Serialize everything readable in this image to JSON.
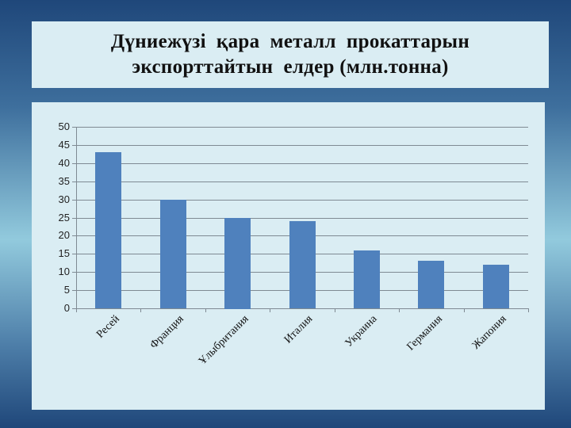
{
  "title": {
    "line1": "Дүниежүзі  қара  металл  прокаттарын",
    "line2": "экспорттайтын  елдер (млн.тонна)"
  },
  "colors": {
    "bar": "#4f81bd",
    "panel": "#daedf3",
    "gridline": "#7f8a93"
  },
  "chart_data": {
    "type": "bar",
    "title": "Дүниежүзі қара металл прокаттарын экспорттайтын елдер (млн.тонна)",
    "categories": [
      "Ресей",
      "Франция",
      "Ұлыбритания",
      "Италия",
      "Украина",
      "Германия",
      "Жапония"
    ],
    "values": [
      43,
      30,
      25,
      24,
      16,
      13,
      12
    ],
    "xlabel": "",
    "ylabel": "",
    "ylim": [
      0,
      50
    ],
    "yticks": [
      "0",
      "5",
      "10",
      "15",
      "20",
      "25",
      "30",
      "35",
      "40",
      "45",
      "50"
    ],
    "grid": true,
    "legend": "none"
  }
}
